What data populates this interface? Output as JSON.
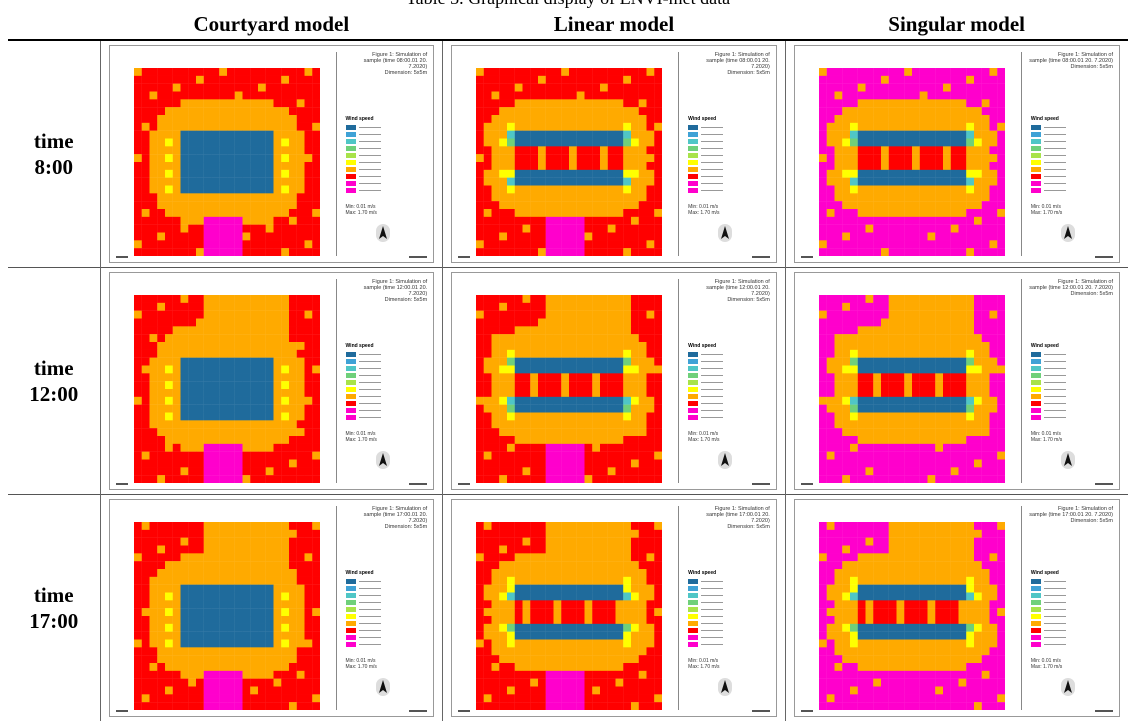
{
  "caption": "Table 3. Graphical display of ENVI-met data",
  "headers": [
    "",
    "Courtyard model",
    "Linear model",
    "Singular model"
  ],
  "rows": [
    {
      "label_line1": "time",
      "label_line2": "8:00"
    },
    {
      "label_line1": "time",
      "label_line2": "12:00"
    },
    {
      "label_line1": "time",
      "label_line2": "17:00"
    }
  ],
  "palette": [
    "#1f6b9c",
    "#3fa2d6",
    "#4fc6c6",
    "#6fd07a",
    "#a8e34a",
    "#ffff00",
    "#ffaa00",
    "#ff0000",
    "#ff00cc"
  ]
}
